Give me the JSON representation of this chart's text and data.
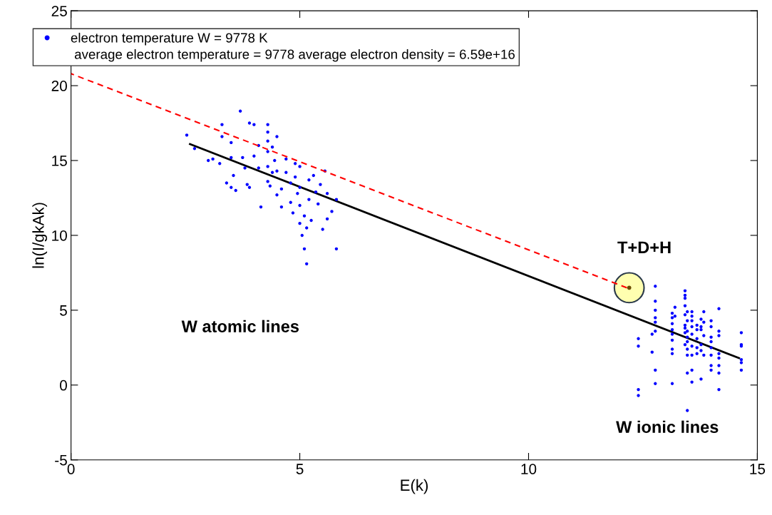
{
  "chart_data": {
    "type": "scatter",
    "xlabel": "E(k)",
    "ylabel": "ln(I/gkAk)",
    "xlim": [
      0,
      15
    ],
    "ylim": [
      -5,
      25
    ],
    "xticks": [
      0,
      5,
      10,
      15
    ],
    "yticks": [
      -5,
      0,
      5,
      10,
      15,
      20,
      25
    ],
    "grid": false,
    "legend": "top left",
    "series": [
      {
        "name": "electron temperature W = 9778 K",
        "marker": "circle",
        "color": "#0000ff",
        "x": [
          2.53,
          2.7,
          3.0,
          3.1,
          3.25,
          3.3,
          3.3,
          3.4,
          3.5,
          3.5,
          3.5,
          3.55,
          3.6,
          3.7,
          3.75,
          3.8,
          3.85,
          3.9,
          3.9,
          4.0,
          4.0,
          4.1,
          4.1,
          4.15,
          4.3,
          4.3,
          4.3,
          4.3,
          4.3,
          4.3,
          4.35,
          4.4,
          4.4,
          4.45,
          4.5,
          4.5,
          4.5,
          4.6,
          4.6,
          4.7,
          4.7,
          4.8,
          4.8,
          4.85,
          4.9,
          4.9,
          4.95,
          5.0,
          5.0,
          5.0,
          5.0,
          5.05,
          5.1,
          5.1,
          5.15,
          5.15,
          5.2,
          5.2,
          5.25,
          5.3,
          5.35,
          5.4,
          5.45,
          5.5,
          5.55,
          5.6,
          5.6,
          5.7,
          5.8,
          5.8,
          12.4,
          12.4,
          12.4,
          12.4,
          12.77,
          12.77,
          12.77,
          12.77,
          12.77,
          12.77,
          12.77,
          12.77,
          12.7,
          12.7,
          13.14,
          13.14,
          13.14,
          13.14,
          13.14,
          13.14,
          13.14,
          13.14,
          13.14,
          13.2,
          13.2,
          13.42,
          13.42,
          13.42,
          13.42,
          13.42,
          13.42,
          13.42,
          13.42,
          13.42,
          13.47,
          13.47,
          13.47,
          13.47,
          13.47,
          13.47,
          13.47,
          13.47,
          13.47,
          13.57,
          13.57,
          13.57,
          13.57,
          13.57,
          13.57,
          13.57,
          13.57,
          13.57,
          13.68,
          13.68,
          13.68,
          13.68,
          13.68,
          13.77,
          13.77,
          13.77,
          13.77,
          13.77,
          13.77,
          13.83,
          13.83,
          13.83,
          13.83,
          13.99,
          13.99,
          13.99,
          13.99,
          13.99,
          13.99,
          13.99,
          13.99,
          14.16,
          14.16,
          14.16,
          14.16,
          14.16,
          14.16,
          14.16,
          14.16,
          14.65,
          14.65,
          14.65,
          14.65,
          14.65,
          14.65
        ],
        "values": [
          16.7,
          15.8,
          15.0,
          15.1,
          14.8,
          17.4,
          16.6,
          13.5,
          16.2,
          15.2,
          13.2,
          14.0,
          13.0,
          18.3,
          15.2,
          14.5,
          13.4,
          17.5,
          13.2,
          17.4,
          15.3,
          16.0,
          14.5,
          11.9,
          17.4,
          16.9,
          16.3,
          15.6,
          14.6,
          13.6,
          13.3,
          15.9,
          14.2,
          15.0,
          16.6,
          14.3,
          12.7,
          13.1,
          11.9,
          15.1,
          14.2,
          13.5,
          12.2,
          11.5,
          14.8,
          13.9,
          12.8,
          14.6,
          13.2,
          12.0,
          10.8,
          10.0,
          11.3,
          9.1,
          8.1,
          10.5,
          12.4,
          13.7,
          11.0,
          14.0,
          12.9,
          12.1,
          13.4,
          10.4,
          14.3,
          12.8,
          11.1,
          11.6,
          12.4,
          9.1,
          3.1,
          2.6,
          -0.3,
          -0.7,
          6.6,
          5.6,
          5.0,
          4.5,
          4.2,
          3.6,
          1.0,
          0.1,
          3.4,
          2.2,
          4.8,
          4.5,
          4.1,
          3.7,
          3.4,
          3.0,
          2.4,
          2.1,
          0.1,
          5.2,
          4.6,
          6.3,
          6.0,
          5.8,
          5.3,
          4.7,
          4.0,
          3.8,
          3.5,
          2.7,
          4.9,
          4.3,
          3.6,
          3.2,
          2.9,
          2.4,
          2.0,
          0.8,
          -1.7,
          4.9,
          4.6,
          4.3,
          3.9,
          3.4,
          2.6,
          2.0,
          1.0,
          0.2,
          4.0,
          3.7,
          3.1,
          2.5,
          2.1,
          4.4,
          3.9,
          3.7,
          2.7,
          2.3,
          0.4,
          4.9,
          4.2,
          3.3,
          2.0,
          4.3,
          3.9,
          3.2,
          2.9,
          2.5,
          2.0,
          1.3,
          1.0,
          5.1,
          3.6,
          3.3,
          2.1,
          1.8,
          1.3,
          0.8,
          -0.3,
          3.5,
          2.7,
          2.6,
          1.7,
          1.5,
          1.0
        ]
      },
      {
        "type": "line",
        "color": "#000000",
        "line_style": "solid",
        "x": [
          2.6,
          14.6
        ],
        "values": [
          16.1,
          1.8
        ]
      },
      {
        "type": "line",
        "color": "#ff0000",
        "line_style": "dashed",
        "x": [
          0,
          12.15
        ],
        "values": [
          20.8,
          6.5
        ]
      },
      {
        "type": "scatter",
        "marker": "circle",
        "color": "#ffffb0",
        "x": [
          12.2
        ],
        "values": [
          6.5
        ]
      }
    ],
    "annotations": [
      "W atomic lines",
      "T+D+H",
      "W ionic lines",
      "average electron temperature = 9778 average electron density = 6.59e+16"
    ]
  }
}
